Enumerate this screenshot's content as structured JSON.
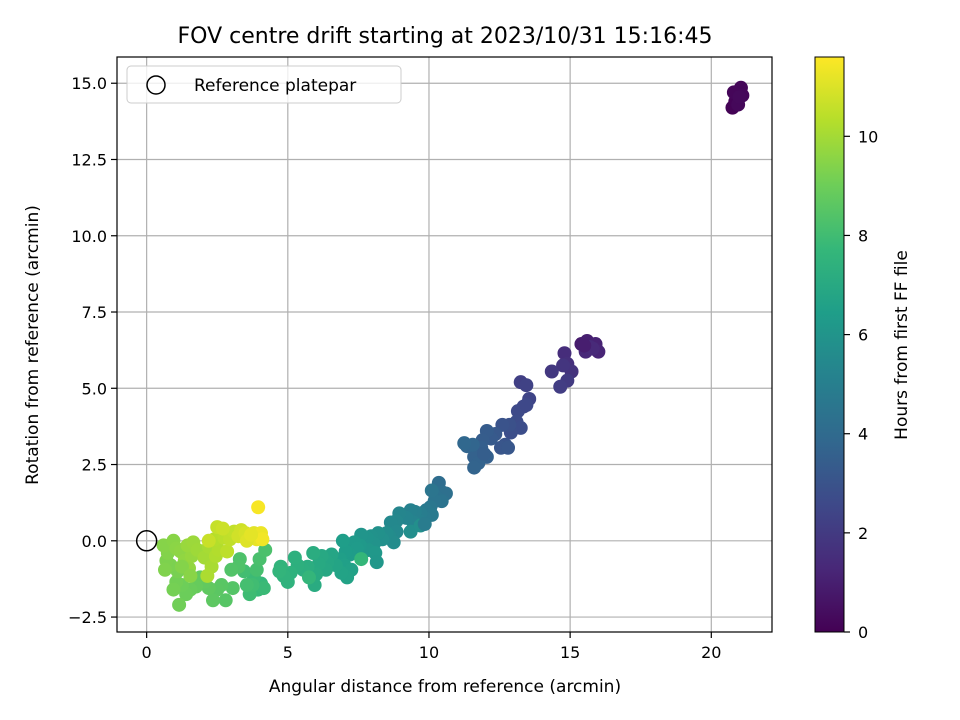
{
  "chart_data": {
    "type": "scatter",
    "title": "FOV centre drift starting at 2023/10/31 15:16:45",
    "xlabel": "Angular distance from reference (arcmin)",
    "ylabel": "Rotation from reference (arcmin)",
    "xlim": [
      -1.05,
      22.15
    ],
    "ylim": [
      -2.99,
      15.86
    ],
    "xticks": [
      0,
      5,
      10,
      15,
      20
    ],
    "xtick_labels": [
      "0",
      "5",
      "10",
      "15",
      "20"
    ],
    "yticks": [
      -2.5,
      0.0,
      2.5,
      5.0,
      7.5,
      10.0,
      12.5,
      15.0
    ],
    "ytick_labels": [
      "−2.5",
      "0.0",
      "2.5",
      "5.0",
      "7.5",
      "10.0",
      "12.5",
      "15.0"
    ],
    "grid": true,
    "legend": {
      "placement": "upper-left",
      "entries": [
        "Reference platepar"
      ]
    },
    "reference_point": {
      "x": 0,
      "y": 0,
      "label": "Reference platepar"
    },
    "colorbar": {
      "label": "Hours from first FF file",
      "colormap": "viridis",
      "range": [
        0,
        11.6
      ],
      "ticks": [
        0,
        2,
        4,
        6,
        8,
        10
      ],
      "tick_labels": [
        "0",
        "2",
        "4",
        "6",
        "8",
        "10"
      ]
    },
    "colormap_stops": [
      "#440154",
      "#482878",
      "#3e4989",
      "#31688e",
      "#26828e",
      "#1f9e89",
      "#35b779",
      "#6ece58",
      "#b5de2b",
      "#fde725"
    ],
    "series": [
      {
        "color_by": "hours",
        "points": [
          [
            20.75,
            14.2,
            0.05
          ],
          [
            20.85,
            14.4,
            0.08
          ],
          [
            20.9,
            14.65,
            0.1
          ],
          [
            21.0,
            14.75,
            0.12
          ],
          [
            21.05,
            14.85,
            0.15
          ],
          [
            20.8,
            14.7,
            0.18
          ],
          [
            21.1,
            14.6,
            0.2
          ],
          [
            20.95,
            14.3,
            0.22
          ],
          [
            21.0,
            14.55,
            0.25
          ],
          [
            15.4,
            6.45,
            0.9
          ],
          [
            15.6,
            6.55,
            1.0
          ],
          [
            15.9,
            6.45,
            1.1
          ],
          [
            16.0,
            6.2,
            1.2
          ],
          [
            15.55,
            6.2,
            1.3
          ],
          [
            15.7,
            6.35,
            1.4
          ],
          [
            15.8,
            6.3,
            1.35
          ],
          [
            15.5,
            6.4,
            0.95
          ],
          [
            14.8,
            6.15,
            1.5
          ],
          [
            14.9,
            5.8,
            1.6
          ],
          [
            15.05,
            5.55,
            1.7
          ],
          [
            14.75,
            5.75,
            1.8
          ],
          [
            14.35,
            5.55,
            1.9
          ],
          [
            14.9,
            5.25,
            2.0
          ],
          [
            14.65,
            5.05,
            2.1
          ],
          [
            13.25,
            5.2,
            2.2
          ],
          [
            13.45,
            5.1,
            2.3
          ],
          [
            13.55,
            4.65,
            2.4
          ],
          [
            13.35,
            4.4,
            2.5
          ],
          [
            13.15,
            4.25,
            2.6
          ],
          [
            13.45,
            4.45,
            2.55
          ],
          [
            13.1,
            3.9,
            2.7
          ],
          [
            13.25,
            3.7,
            2.75
          ],
          [
            12.9,
            3.55,
            2.8
          ],
          [
            12.85,
            3.8,
            2.9
          ],
          [
            12.6,
            3.8,
            3.0
          ],
          [
            12.7,
            3.15,
            3.05
          ],
          [
            12.55,
            3.05,
            3.1
          ],
          [
            12.8,
            3.05,
            3.15
          ],
          [
            12.35,
            3.5,
            3.2
          ],
          [
            12.2,
            3.35,
            3.3
          ],
          [
            12.05,
            3.6,
            3.35
          ],
          [
            11.9,
            3.3,
            3.4
          ],
          [
            11.85,
            3.05,
            3.5
          ],
          [
            12.05,
            2.75,
            3.55
          ],
          [
            11.6,
            2.75,
            3.6
          ],
          [
            11.75,
            2.55,
            3.65
          ],
          [
            11.6,
            2.4,
            3.7
          ],
          [
            11.35,
            3.1,
            3.75
          ],
          [
            11.55,
            3.15,
            3.8
          ],
          [
            11.25,
            3.2,
            3.85
          ],
          [
            11.95,
            2.85,
            3.45
          ],
          [
            10.35,
            1.9,
            4.1
          ],
          [
            10.45,
            1.6,
            4.2
          ],
          [
            10.6,
            1.55,
            4.25
          ],
          [
            10.25,
            1.45,
            4.3
          ],
          [
            10.45,
            1.3,
            4.4
          ],
          [
            10.2,
            1.3,
            4.45
          ],
          [
            10.1,
            1.65,
            4.5
          ],
          [
            10.05,
            1.1,
            4.6
          ],
          [
            9.9,
            1.0,
            4.7
          ],
          [
            10.1,
            0.85,
            4.75
          ],
          [
            9.85,
            0.75,
            4.8
          ],
          [
            9.7,
            0.9,
            4.9
          ],
          [
            9.65,
            0.65,
            5.0
          ],
          [
            9.5,
            0.95,
            5.05
          ],
          [
            9.35,
            1.0,
            5.1
          ],
          [
            9.45,
            0.6,
            5.2
          ],
          [
            9.2,
            0.75,
            5.25
          ],
          [
            8.95,
            0.9,
            5.3
          ],
          [
            8.85,
            0.65,
            5.4
          ],
          [
            8.65,
            0.6,
            5.45
          ],
          [
            8.85,
            0.3,
            5.5
          ],
          [
            8.6,
            0.15,
            5.55
          ],
          [
            8.75,
            -0.05,
            5.6
          ],
          [
            8.5,
            0.25,
            5.65
          ],
          [
            9.35,
            0.3,
            5.7
          ],
          [
            9.7,
            0.5,
            5.75
          ],
          [
            9.85,
            0.55,
            4.85
          ],
          [
            8.35,
            0.05,
            5.8
          ],
          [
            8.2,
            0.25,
            5.85
          ],
          [
            7.95,
            0.15,
            5.9
          ],
          [
            8.05,
            -0.1,
            5.95
          ],
          [
            7.8,
            0.1,
            6.0
          ],
          [
            7.6,
            0.2,
            6.05
          ],
          [
            7.85,
            -0.3,
            6.1
          ],
          [
            8.1,
            -0.4,
            6.15
          ],
          [
            7.55,
            -0.15,
            6.2
          ],
          [
            7.35,
            -0.05,
            6.25
          ],
          [
            7.45,
            -0.25,
            6.3
          ],
          [
            7.2,
            -0.45,
            6.35
          ],
          [
            7.05,
            -0.35,
            6.4
          ],
          [
            6.95,
            0.0,
            6.45
          ],
          [
            6.85,
            -0.6,
            6.5
          ],
          [
            7.0,
            -0.8,
            6.55
          ],
          [
            7.25,
            -0.95,
            6.6
          ],
          [
            7.1,
            -1.2,
            6.65
          ],
          [
            6.9,
            -1.05,
            6.7
          ],
          [
            6.7,
            -0.8,
            6.75
          ],
          [
            6.55,
            -0.45,
            6.8
          ],
          [
            6.4,
            -0.7,
            6.85
          ],
          [
            6.35,
            -0.95,
            6.9
          ],
          [
            6.2,
            -0.5,
            6.95
          ],
          [
            6.1,
            -0.75,
            7.0
          ],
          [
            6.0,
            -1.1,
            7.05
          ],
          [
            5.95,
            -1.45,
            7.1
          ],
          [
            5.9,
            -0.4,
            7.15
          ],
          [
            5.7,
            -0.85,
            7.2
          ],
          [
            5.55,
            -0.95,
            7.25
          ],
          [
            5.35,
            -0.8,
            7.3
          ],
          [
            5.25,
            -0.55,
            7.35
          ],
          [
            5.1,
            -1.05,
            7.4
          ],
          [
            5.0,
            -1.35,
            7.45
          ],
          [
            4.85,
            -1.15,
            7.5
          ],
          [
            4.75,
            -0.85,
            7.55
          ],
          [
            4.7,
            -1.0,
            7.6
          ],
          [
            5.75,
            -1.2,
            7.65
          ],
          [
            7.6,
            -0.6,
            7.7
          ],
          [
            8.15,
            -0.7,
            6.12
          ],
          [
            4.05,
            -1.4,
            7.75
          ],
          [
            3.95,
            -1.6,
            7.8
          ],
          [
            4.15,
            -1.55,
            7.85
          ],
          [
            3.8,
            -1.2,
            7.9
          ],
          [
            3.65,
            -1.75,
            7.95
          ],
          [
            3.75,
            -1.45,
            8.0
          ],
          [
            3.45,
            -1.0,
            8.05
          ],
          [
            3.55,
            -1.45,
            8.1
          ],
          [
            3.9,
            -0.95,
            8.15
          ],
          [
            4.0,
            -0.6,
            8.2
          ],
          [
            4.2,
            -0.3,
            8.25
          ],
          [
            3.3,
            -0.6,
            8.3
          ],
          [
            3.25,
            -0.85,
            8.35
          ],
          [
            3.0,
            -0.95,
            8.4
          ],
          [
            3.05,
            -1.55,
            8.45
          ],
          [
            2.8,
            -1.95,
            8.5
          ],
          [
            2.65,
            -1.45,
            8.55
          ],
          [
            2.5,
            -1.6,
            8.6
          ],
          [
            2.35,
            -1.95,
            8.65
          ],
          [
            2.2,
            -1.55,
            8.7
          ],
          [
            2.05,
            -1.35,
            8.75
          ],
          [
            1.9,
            -1.2,
            8.8
          ],
          [
            1.75,
            -1.5,
            8.85
          ],
          [
            1.55,
            -1.6,
            8.9
          ],
          [
            1.4,
            -1.75,
            8.95
          ],
          [
            1.25,
            -1.45,
            9.0
          ],
          [
            1.15,
            -2.1,
            9.05
          ],
          [
            1.05,
            -1.35,
            9.1
          ],
          [
            0.95,
            -1.6,
            9.15
          ],
          [
            1.1,
            -1.0,
            9.2
          ],
          [
            0.85,
            -0.8,
            9.25
          ],
          [
            0.7,
            -0.65,
            9.3
          ],
          [
            0.65,
            -0.95,
            9.35
          ],
          [
            0.75,
            -0.4,
            9.4
          ],
          [
            0.6,
            -0.15,
            9.45
          ],
          [
            0.95,
            0.0,
            9.5
          ],
          [
            1.05,
            -0.25,
            9.55
          ],
          [
            1.2,
            -0.35,
            9.6
          ],
          [
            1.35,
            -0.65,
            9.65
          ],
          [
            1.5,
            -0.9,
            9.7
          ],
          [
            1.6,
            -0.5,
            9.75
          ],
          [
            1.45,
            -0.15,
            9.8
          ],
          [
            1.65,
            -0.05,
            9.85
          ],
          [
            1.8,
            -0.3,
            9.9
          ],
          [
            1.25,
            -0.85,
            9.42
          ],
          [
            1.55,
            -1.15,
            9.52
          ],
          [
            2.05,
            -0.55,
            10.0
          ],
          [
            2.2,
            -0.2,
            10.05
          ],
          [
            2.3,
            -0.85,
            10.1
          ],
          [
            2.15,
            -1.15,
            10.15
          ],
          [
            2.45,
            -0.5,
            10.2
          ],
          [
            2.55,
            -0.3,
            10.25
          ],
          [
            2.4,
            0.05,
            10.3
          ],
          [
            2.6,
            0.25,
            10.35
          ],
          [
            2.75,
            0.1,
            10.4
          ],
          [
            2.85,
            -0.35,
            10.45
          ],
          [
            2.95,
            0.05,
            10.5
          ],
          [
            3.1,
            0.3,
            10.55
          ],
          [
            2.5,
            0.45,
            10.6
          ],
          [
            2.2,
            0.0,
            10.65
          ],
          [
            2.7,
            0.4,
            10.7
          ],
          [
            3.35,
            0.35,
            10.75
          ],
          [
            3.25,
            0.15,
            10.8
          ],
          [
            3.5,
            0.25,
            10.9
          ],
          [
            3.65,
            0.1,
            11.0
          ],
          [
            3.8,
            0.25,
            11.1
          ],
          [
            3.9,
            0.05,
            11.2
          ],
          [
            4.05,
            0.25,
            11.3
          ],
          [
            3.95,
            1.1,
            11.5
          ],
          [
            4.1,
            0.05,
            11.4
          ],
          [
            3.55,
            0.0,
            11.05
          ],
          [
            3.7,
            0.2,
            11.15
          ]
        ]
      }
    ]
  }
}
